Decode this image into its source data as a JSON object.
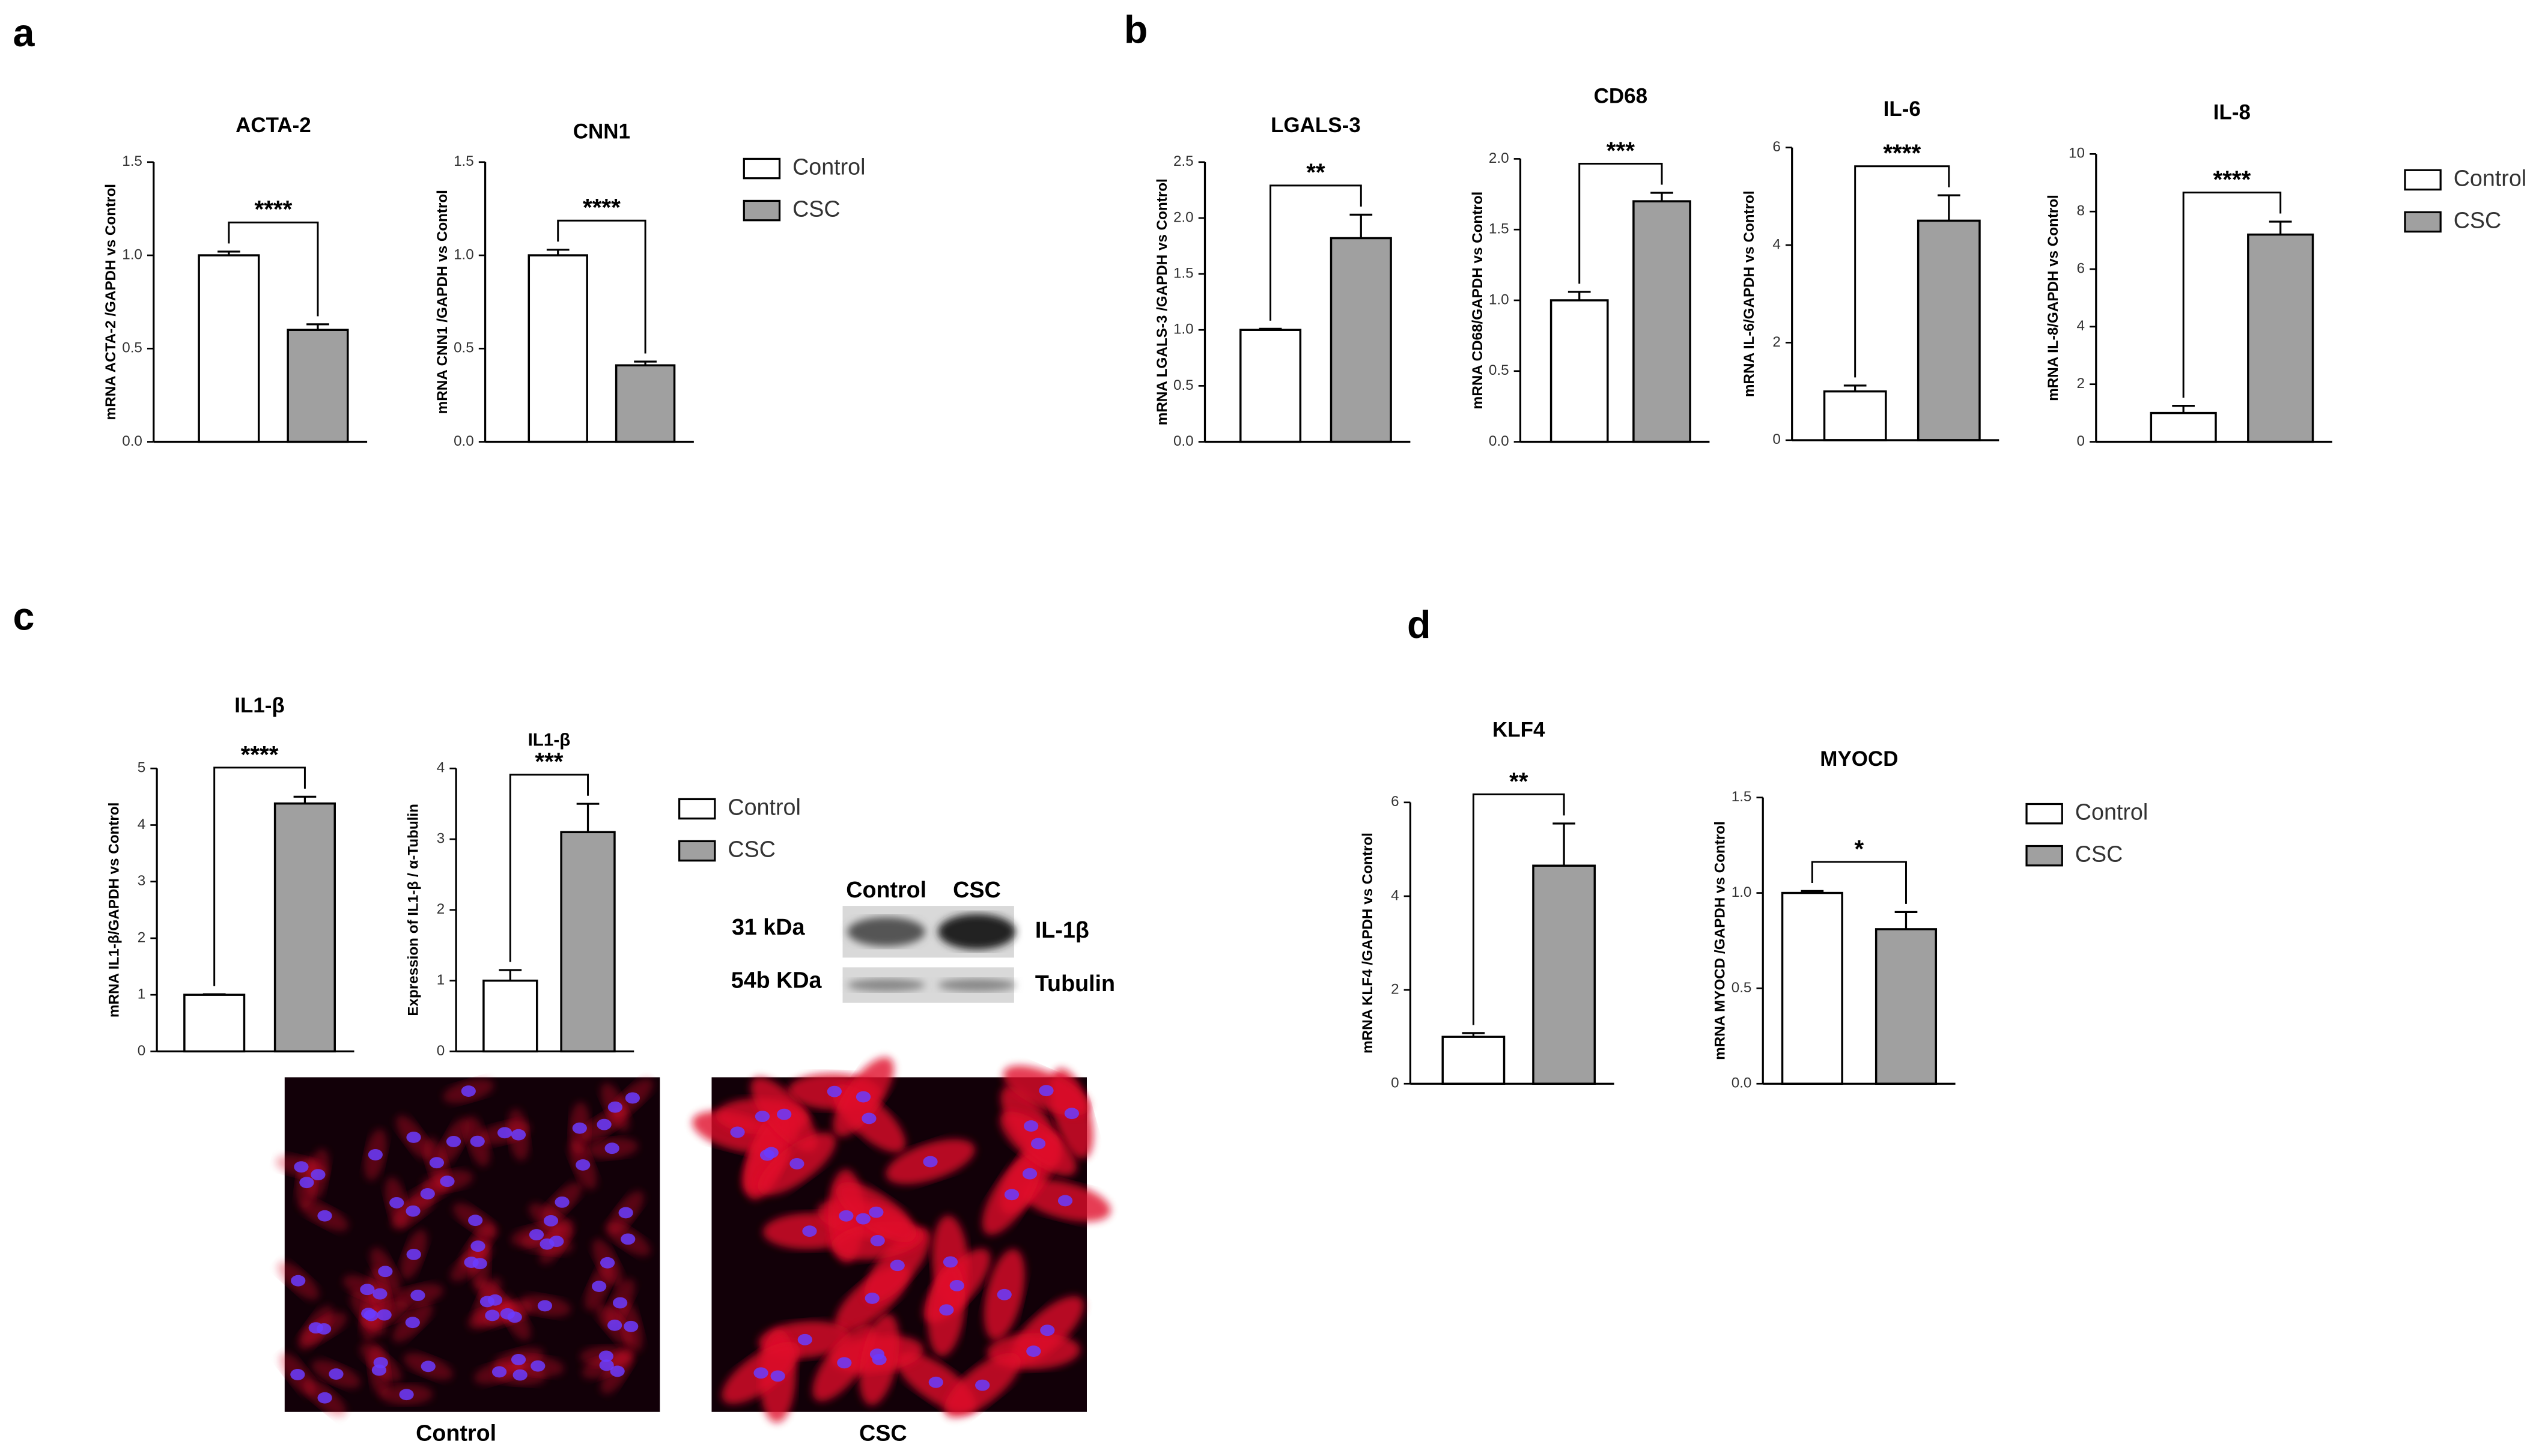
{
  "panels": [
    "a",
    "b",
    "c",
    "d"
  ],
  "legend": {
    "names": [
      "Control",
      "CSC"
    ],
    "colors": [
      "#ffffff",
      "#a0a0a0"
    ]
  },
  "chart_data": [
    {
      "type": "bar",
      "title": "ACTA-2",
      "y_label": "mRNA ACTA-2 /GAPDH vs Control",
      "values": [
        1.0,
        0.6
      ],
      "errors": [
        0.02,
        0.03
      ],
      "significance": "****",
      "ylim": [
        0,
        1.5
      ],
      "yticks": [
        {
          "value": 0,
          "label": "0.0"
        },
        0.5,
        {
          "value": 1,
          "label": "1.0"
        },
        1.5
      ]
    },
    {
      "type": "bar",
      "title": "CNN1",
      "y_label": "mRNA CNN1 /GAPDH vs Control",
      "values": [
        1.0,
        0.41
      ],
      "errors": [
        0.03,
        0.02
      ],
      "significance": "****",
      "ylim": [
        0,
        1.5
      ],
      "yticks": [
        {
          "value": 0,
          "label": "0.0"
        },
        0.5,
        {
          "value": 1,
          "label": "1.0"
        },
        1.5
      ]
    },
    {
      "type": "bar",
      "title": "LGALS-3",
      "y_label": "mRNA LGALS-3 /GAPDH vs Control",
      "values": [
        1.0,
        1.82
      ],
      "errors": [
        0.01,
        0.21
      ],
      "significance": "**",
      "ylim": [
        0,
        2.5
      ],
      "yticks": [
        {
          "value": 0,
          "label": "0.0"
        },
        0.5,
        {
          "value": 1,
          "label": "1.0"
        },
        1.5,
        {
          "value": 2,
          "label": "2.0"
        },
        2.5
      ]
    },
    {
      "type": "bar",
      "title": "CD68",
      "y_label": "mRNA CD68/GAPDH vs Control",
      "values": [
        1.0,
        1.7
      ],
      "errors": [
        0.06,
        0.06
      ],
      "significance": "***",
      "ylim": [
        0,
        2
      ],
      "yticks": [
        {
          "value": 0,
          "label": "0.0"
        },
        0.5,
        {
          "value": 1,
          "label": "1.0"
        },
        1.5,
        {
          "value": 2,
          "label": "2.0"
        }
      ]
    },
    {
      "type": "bar",
      "title": "IL-6",
      "y_label": "mRNA IL-6/GAPDH vs Control",
      "values": [
        1.0,
        4.5
      ],
      "errors": [
        0.12,
        0.52
      ],
      "significance": "****",
      "ylim": [
        0,
        6
      ],
      "yticks": [
        0,
        2,
        4,
        6
      ]
    },
    {
      "type": "bar",
      "title": "IL-8",
      "y_label": "mRNA IL-8/GAPDH vs Control",
      "values": [
        1.0,
        7.2
      ],
      "errors": [
        0.25,
        0.45
      ],
      "significance": "****",
      "ylim": [
        0,
        10
      ],
      "yticks": [
        0,
        2,
        4,
        6,
        8,
        10
      ]
    },
    {
      "type": "bar",
      "title": "IL1-β",
      "y_label": "mRNA IL1-β/GAPDH vs Control",
      "values": [
        1.0,
        4.38
      ],
      "errors": [
        0.01,
        0.12
      ],
      "significance": "****",
      "ylim": [
        0,
        5
      ],
      "yticks": [
        0,
        1,
        2,
        3,
        4,
        5
      ]
    },
    {
      "type": "bar",
      "title": "IL1-β",
      "y_label": "Expression of IL1-β / α-Tubulin",
      "values": [
        1.0,
        3.1
      ],
      "errors": [
        0.15,
        0.4
      ],
      "significance": "***",
      "ylim": [
        0,
        4
      ],
      "yticks": [
        0,
        1,
        2,
        3,
        4
      ]
    },
    {
      "type": "bar",
      "title": "KLF4",
      "y_label": "mRNA KLF4 /GAPDH vs Control",
      "values": [
        1.0,
        4.65
      ],
      "errors": [
        0.08,
        0.9
      ],
      "significance": "**",
      "ylim": [
        0,
        6
      ],
      "yticks": [
        0,
        2,
        4,
        6
      ]
    },
    {
      "type": "bar",
      "title": "MYOCD",
      "y_label": "mRNA MYOCD /GAPDH vs Control",
      "values": [
        1.0,
        0.81
      ],
      "errors": [
        0.01,
        0.09
      ],
      "significance": "*",
      "ylim": [
        0,
        1.5
      ],
      "yticks": [
        {
          "value": 0,
          "label": "0.0"
        },
        0.5,
        {
          "value": 1,
          "label": "1.0"
        },
        1.5
      ]
    }
  ],
  "blot": {
    "lanes": [
      "Control",
      "CSC"
    ],
    "rows": [
      {
        "size": "31 kDa",
        "protein": "IL-1β"
      },
      {
        "size": "54b KDa",
        "protein": "Tubulin"
      }
    ]
  },
  "images": {
    "captions": [
      "Control",
      "CSC"
    ]
  }
}
